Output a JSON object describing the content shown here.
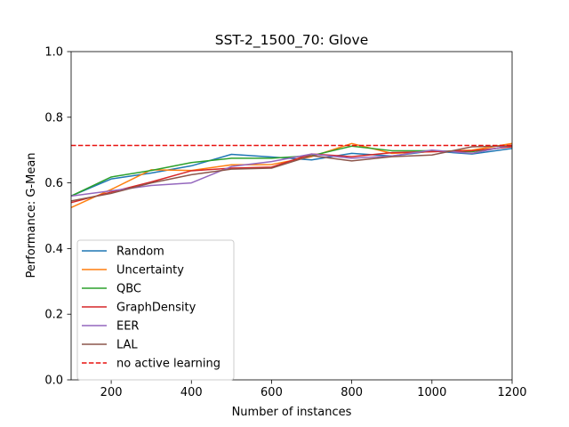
{
  "chart_data": {
    "type": "line",
    "title": "SST-2_1500_70: Glove",
    "xlabel": "Number of instances",
    "ylabel": "Performance: G-Mean",
    "xlim": [
      100,
      1200
    ],
    "ylim": [
      0.0,
      1.0
    ],
    "x_ticks": [
      200,
      400,
      600,
      800,
      1000,
      1200
    ],
    "x_tick_labels": [
      "200",
      "400",
      "600",
      "800",
      "1000",
      "1200"
    ],
    "y_ticks": [
      0.0,
      0.2,
      0.4,
      0.6,
      0.8,
      1.0
    ],
    "y_tick_labels": [
      "0.0",
      "0.2",
      "0.4",
      "0.6",
      "0.8",
      "1.0"
    ],
    "grid": false,
    "legend_position": "lower-left",
    "x": [
      100,
      200,
      300,
      400,
      500,
      600,
      700,
      800,
      900,
      1000,
      1100,
      1200
    ],
    "series": [
      {
        "name": "Random",
        "color": "#1f77b4",
        "style": "solid",
        "values": [
          0.56,
          0.612,
          0.63,
          0.652,
          0.687,
          0.679,
          0.67,
          0.69,
          0.682,
          0.697,
          0.688,
          0.705
        ]
      },
      {
        "name": "Uncertainty",
        "color": "#ff7f0e",
        "style": "solid",
        "values": [
          0.525,
          0.58,
          0.64,
          0.638,
          0.655,
          0.656,
          0.68,
          0.72,
          0.69,
          0.695,
          0.7,
          0.72
        ]
      },
      {
        "name": "QBC",
        "color": "#2ca02c",
        "style": "solid",
        "values": [
          0.56,
          0.618,
          0.638,
          0.662,
          0.675,
          0.675,
          0.683,
          0.712,
          0.698,
          0.698,
          0.695,
          0.712
        ]
      },
      {
        "name": "GraphDensity",
        "color": "#d62728",
        "style": "solid",
        "values": [
          0.54,
          0.572,
          0.603,
          0.637,
          0.645,
          0.648,
          0.688,
          0.68,
          0.692,
          0.695,
          0.698,
          0.71
        ]
      },
      {
        "name": "EER",
        "color": "#9467bd",
        "style": "solid",
        "values": [
          0.56,
          0.576,
          0.592,
          0.6,
          0.65,
          0.665,
          0.688,
          0.675,
          0.682,
          0.7,
          0.69,
          0.715
        ]
      },
      {
        "name": "LAL",
        "color": "#8c564b",
        "style": "solid",
        "values": [
          0.545,
          0.568,
          0.6,
          0.625,
          0.642,
          0.645,
          0.683,
          0.667,
          0.68,
          0.685,
          0.71,
          0.713
        ]
      },
      {
        "name": "no active learning",
        "color": "#e8110f",
        "style": "dashed",
        "constant": 0.714
      }
    ]
  }
}
